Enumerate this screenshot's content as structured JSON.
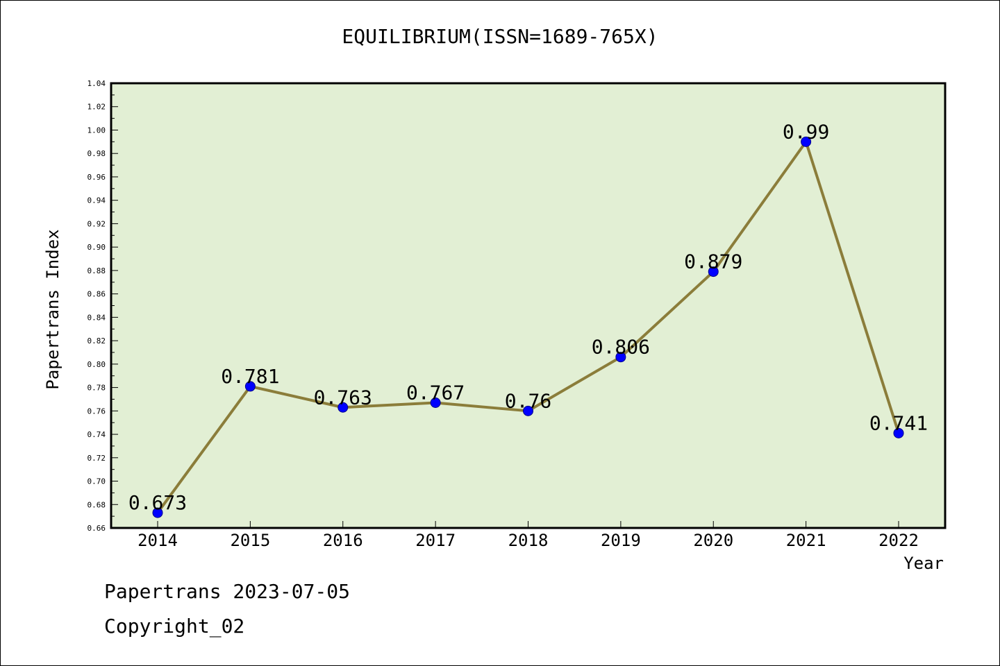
{
  "chart_data": {
    "type": "line",
    "title": "EQUILIBRIUM(ISSN=1689-765X)",
    "xlabel": "Year",
    "ylabel": "Papertrans Index",
    "categories": [
      "2014",
      "2015",
      "2016",
      "2017",
      "2018",
      "2019",
      "2020",
      "2021",
      "2022"
    ],
    "series": [
      {
        "values": [
          0.673,
          0.781,
          0.763,
          0.767,
          0.76,
          0.806,
          0.879,
          0.99,
          0.741
        ],
        "data_labels": [
          "0.673",
          "0.781",
          "0.763",
          "0.767",
          "0.76",
          "0.806",
          "0.879",
          "0.99",
          "0.741"
        ]
      }
    ],
    "ylim": [
      0.66,
      1.04
    ],
    "yticks": [
      "0.66",
      "0.68",
      "0.70",
      "0.72",
      "0.74",
      "0.76",
      "0.78",
      "0.80",
      "0.82",
      "0.84",
      "0.86",
      "0.88",
      "0.90",
      "0.92",
      "0.94",
      "0.96",
      "0.98",
      "1.00",
      "1.02",
      "1.04"
    ],
    "grid": false,
    "colors": {
      "plot_background": "#e2efd4",
      "line": "#8b7d3a",
      "marker": "#0000ff"
    }
  },
  "footer": {
    "line1": "Papertrans 2023-07-05",
    "line2": "Copyright_02"
  }
}
